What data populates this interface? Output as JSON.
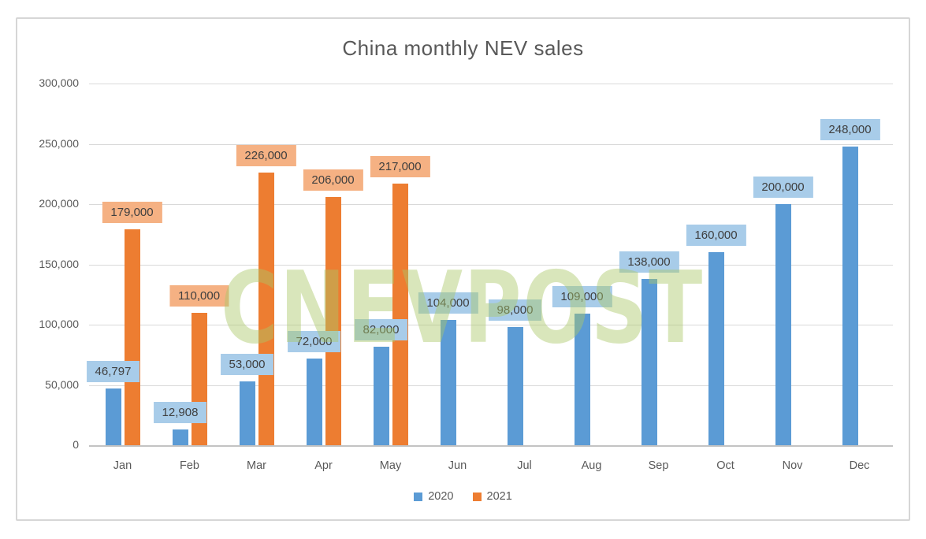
{
  "title": "China monthly NEV sales",
  "watermark": "CNEVPOST",
  "chart_data": {
    "type": "bar",
    "title": "China monthly NEV sales",
    "categories": [
      "Jan",
      "Feb",
      "Mar",
      "Apr",
      "May",
      "Jun",
      "Jul",
      "Aug",
      "Sep",
      "Oct",
      "Nov",
      "Dec"
    ],
    "series": [
      {
        "name": "2020",
        "color": "#5B9BD5",
        "label_bg": "#A8CCE9",
        "values": [
          46797,
          12908,
          53000,
          72000,
          82000,
          104000,
          98000,
          109000,
          138000,
          160000,
          200000,
          248000
        ],
        "labels": [
          "46,797",
          "12,908",
          "53,000",
          "72,000",
          "82,000",
          "104,000",
          "98,000",
          "109,000",
          "138,000",
          "160,000",
          "200,000",
          "248,000"
        ]
      },
      {
        "name": "2021",
        "color": "#ED7D31",
        "label_bg": "#F5B183",
        "values": [
          179000,
          110000,
          226000,
          206000,
          217000,
          null,
          null,
          null,
          null,
          null,
          null,
          null
        ],
        "labels": [
          "179,000",
          "110,000",
          "226,000",
          "206,000",
          "217,000",
          null,
          null,
          null,
          null,
          null,
          null,
          null
        ]
      }
    ],
    "ylim": [
      0,
      300000
    ],
    "ytick_interval": 50000,
    "ytick_labels": [
      "0",
      "50,000",
      "100,000",
      "150,000",
      "200,000",
      "250,000",
      "300,000"
    ],
    "grid": true,
    "legend_position": "bottom",
    "xlabel": "",
    "ylabel": ""
  },
  "legend": {
    "items": [
      {
        "label": "2020",
        "color": "#5B9BD5"
      },
      {
        "label": "2021",
        "color": "#ED7D31"
      }
    ]
  },
  "colors": {
    "title_text": "#595959",
    "axis_text": "#595959",
    "label_text": "#3f3f3f",
    "gridline": "#D9D9D9",
    "axis_line": "#C3C3C3",
    "frame_border": "#D6D6D6",
    "watermark_green": "#AAC869"
  }
}
